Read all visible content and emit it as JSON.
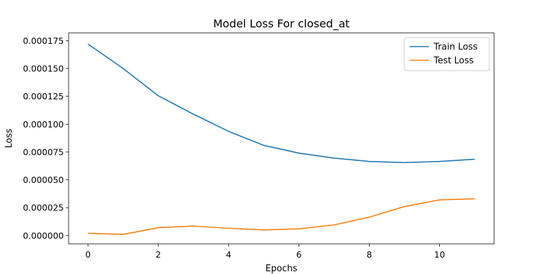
{
  "chart_data": {
    "type": "line",
    "title": "Model Loss For closed_at",
    "xlabel": "Epochs",
    "ylabel": "Loss",
    "x": [
      0,
      1,
      2,
      3,
      4,
      5,
      6,
      7,
      8,
      9,
      10,
      11
    ],
    "xticks": [
      0,
      2,
      4,
      6,
      8,
      10
    ],
    "xtick_labels": [
      "0",
      "2",
      "4",
      "6",
      "8",
      "10"
    ],
    "yticks": [
      0,
      2.5e-05,
      5e-05,
      7.5e-05,
      0.0001,
      0.000125,
      0.00015,
      0.000175
    ],
    "ytick_labels": [
      "0.000000",
      "0.000025",
      "0.000050",
      "0.000075",
      "0.000100",
      "0.000125",
      "0.000150",
      "0.000175"
    ],
    "xlim": [
      -0.55,
      11.55
    ],
    "ylim": [
      -7.5e-06,
      0.000182
    ],
    "grid": false,
    "legend_position": "top-right",
    "series": [
      {
        "name": "Train Loss",
        "color": "#1f77b4",
        "values": [
          0.000172,
          0.00015,
          0.0001255,
          0.000109,
          9.35e-05,
          8.1e-05,
          7.4e-05,
          6.95e-05,
          6.65e-05,
          6.55e-05,
          6.65e-05,
          6.85e-05
        ]
      },
      {
        "name": "Test Loss",
        "color": "#ff7f0e",
        "values": [
          2e-06,
          1e-06,
          7e-06,
          8.5e-06,
          6.5e-06,
          5e-06,
          6e-06,
          9.5e-06,
          1.65e-05,
          2.6e-05,
          3.2e-05,
          3.3e-05
        ]
      }
    ]
  }
}
